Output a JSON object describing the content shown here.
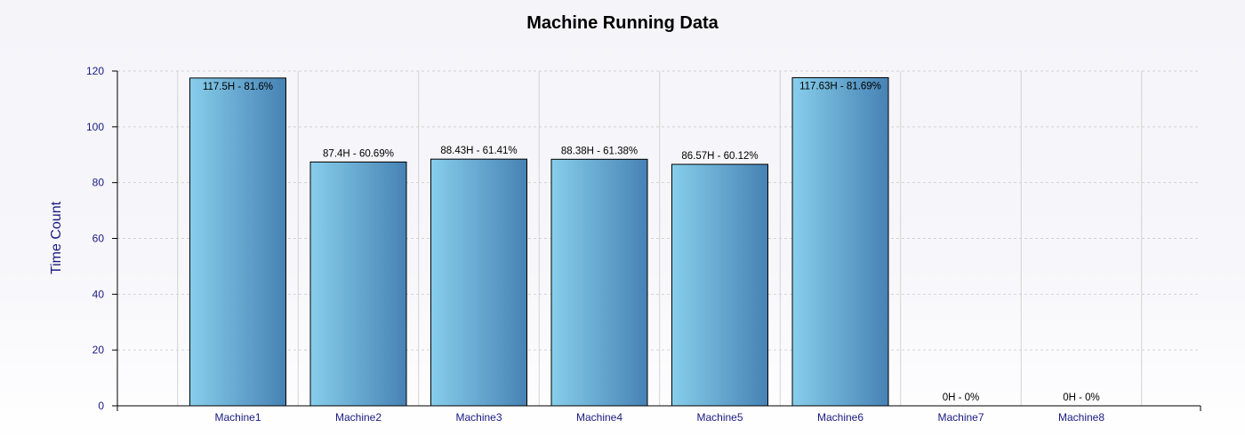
{
  "chart_data": {
    "type": "bar",
    "title": "Machine Running Data",
    "xlabel": "",
    "ylabel": "Time Count",
    "categories": [
      "Machine1",
      "Machine2",
      "Machine3",
      "Machine4",
      "Machine5",
      "Machine6",
      "Machine7",
      "Machine8"
    ],
    "values": [
      117.5,
      87.4,
      88.43,
      88.38,
      86.57,
      117.63,
      0,
      0
    ],
    "data_labels": [
      "117.5H - 81.6%",
      "87.4H - 60.69%",
      "88.43H - 61.41%",
      "88.38H - 61.38%",
      "86.57H - 60.12%",
      "117.63H - 81.69%",
      "0H - 0%",
      "0H - 0%"
    ],
    "ylim": [
      0,
      120
    ],
    "y_ticks": [
      "0",
      "20",
      "40",
      "60",
      "80",
      "100",
      "120"
    ],
    "grid": true,
    "legend": "none",
    "colors": {
      "bar_light": "#87ceeb",
      "bar_dark": "#4682b4",
      "bar_outline": "#000000",
      "axis_text": "#1a1a80",
      "grid": "#d3d3d3"
    }
  }
}
